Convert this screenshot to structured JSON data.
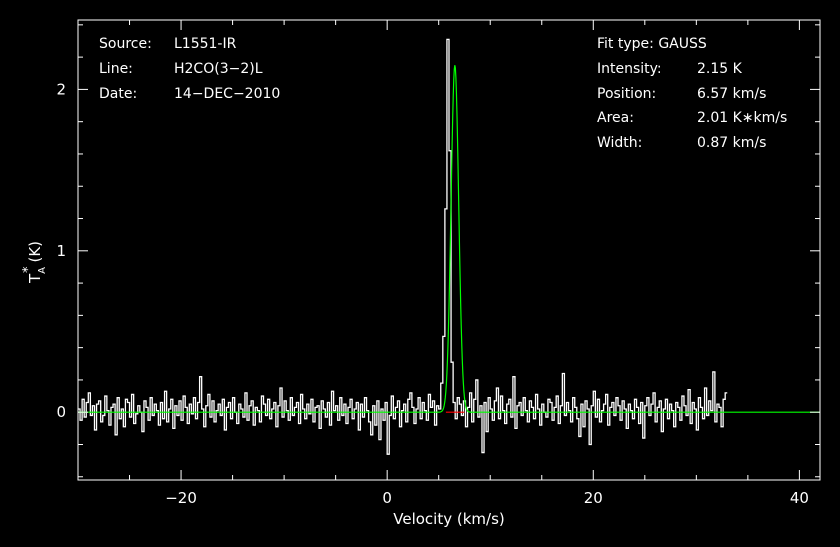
{
  "header_left": {
    "source_label": "Source:",
    "source_value": "L1551-IR",
    "line_label": "Line:",
    "line_value": "H2CO(3−2)L",
    "date_label": "Date:",
    "date_value": "14−DEC−2010"
  },
  "header_right": {
    "fit_type_label": "Fit type:",
    "fit_type_value": "GAUSS",
    "intensity_label": "Intensity:",
    "intensity_value": "2.15 K",
    "position_label": "Position:",
    "position_value": "6.57 km/s",
    "area_label": "Area:",
    "area_value": "2.01 K∗km/s",
    "width_label": "Width:",
    "width_value": "0.87 km/s"
  },
  "chart_data": {
    "type": "line",
    "xlabel": "Velocity (km/s)",
    "ylabel": "T",
    "ylabel_sup": "*",
    "ylabel_sub": "A",
    "ylabel_unit": "(K)",
    "xlim": [
      -30,
      42
    ],
    "ylim": [
      -0.42,
      2.43
    ],
    "x_ticks": [
      -20,
      0,
      20,
      40
    ],
    "x_tick_labels": [
      "−20",
      "0",
      "20",
      "40"
    ],
    "y_ticks": [
      0,
      1,
      2
    ],
    "y_tick_labels": [
      "0",
      "1",
      "2"
    ],
    "grid": false,
    "colors": {
      "background": "#000000",
      "data": "#ffffff",
      "fit": "#00ff00",
      "residual_peak": "#ff0000"
    },
    "series": [
      {
        "kind": "histogram",
        "color": "#ffffff",
        "x_start": -30.0,
        "x_step": 0.2,
        "values": [
          0.02,
          -0.05,
          0.08,
          -0.03,
          0.06,
          0.12,
          -0.02,
          0.04,
          -0.11,
          0.05,
          0.07,
          -0.06,
          -0.02,
          0.1,
          0.01,
          -0.08,
          0.03,
          0.05,
          -0.14,
          0.09,
          -0.04,
          0.02,
          -0.09,
          0.08,
          0.06,
          -0.03,
          0.11,
          -0.07,
          -0.01,
          0.04,
          0.0,
          -0.12,
          0.07,
          0.03,
          -0.05,
          0.09,
          -0.02,
          0.05,
          0.01,
          -0.08,
          0.06,
          -0.04,
          0.13,
          -0.06,
          0.02,
          0.08,
          -0.1,
          0.04,
          -0.02,
          0.07,
          -0.05,
          0.1,
          0.03,
          -0.07,
          0.05,
          -0.01,
          0.09,
          -0.04,
          0.06,
          0.22,
          0.02,
          -0.09,
          0.04,
          0.11,
          -0.03,
          0.07,
          -0.06,
          0.01,
          0.05,
          -0.02,
          0.08,
          -0.11,
          0.03,
          0.06,
          -0.04,
          0.09,
          0.0,
          -0.07,
          0.05,
          0.02,
          -0.03,
          0.12,
          -0.05,
          0.04,
          0.07,
          -0.08,
          0.03,
          0.01,
          -0.06,
          0.1,
          0.05,
          -0.02,
          0.08,
          -0.04,
          0.02,
          0.06,
          -0.09,
          0.04,
          0.15,
          -0.03,
          0.07,
          0.01,
          -0.05,
          0.09,
          -0.02,
          0.03,
          0.06,
          -0.07,
          0.11,
          0.02,
          -0.04,
          0.05,
          -0.01,
          0.08,
          -0.06,
          0.03,
          0.04,
          -0.1,
          0.07,
          0.02,
          -0.03,
          0.06,
          -0.08,
          0.13,
          0.01,
          0.04,
          -0.05,
          0.09,
          -0.02,
          0.05,
          -0.07,
          0.03,
          0.08,
          -0.04,
          0.02,
          0.06,
          -0.11,
          0.05,
          -0.03,
          0.09,
          0.01,
          -0.06,
          -0.14,
          0.04,
          -0.08,
          0.07,
          -0.17,
          0.02,
          -0.05,
          0.06,
          -0.26,
          -0.02,
          0.1,
          -0.04,
          0.03,
          0.07,
          -0.09,
          0.01,
          0.05,
          -0.06,
          0.08,
          0.12,
          0.03,
          -0.07,
          0.02,
          0.09,
          -0.04,
          0.06,
          0.01,
          -0.05,
          0.11,
          0.03,
          0.07,
          -0.08,
          0.04,
          0.02,
          0.18,
          0.47,
          1.26,
          2.31,
          1.62,
          0.31,
          0.06,
          -0.04,
          0.09,
          0.05,
          -0.02,
          0.07,
          -0.09,
          0.03,
          0.12,
          -0.06,
          0.08,
          0.2,
          -0.03,
          0.04,
          -0.25,
          0.06,
          -0.12,
          0.09,
          0.02,
          -0.05,
          0.07,
          0.15,
          -0.04,
          0.1,
          0.01,
          -0.07,
          0.05,
          0.08,
          -0.03,
          0.22,
          -0.1,
          0.04,
          0.06,
          -0.02,
          0.09,
          0.01,
          -0.06,
          0.07,
          0.03,
          -0.04,
          0.11,
          0.02,
          -0.08,
          0.05,
          0.0,
          -0.03,
          0.08,
          0.06,
          -0.05,
          0.03,
          0.1,
          -0.07,
          0.04,
          0.24,
          -0.02,
          0.06,
          0.01,
          -0.06,
          0.09,
          0.03,
          -0.04,
          -0.15,
          0.05,
          -0.09,
          0.07,
          0.02,
          -0.2,
          0.04,
          0.13,
          -0.03,
          0.08,
          -0.06,
          0.01,
          0.05,
          0.11,
          -0.08,
          0.03,
          0.06,
          -0.02,
          0.09,
          0.04,
          -0.05,
          0.07,
          0.02,
          -0.1,
          0.05,
          0.01,
          -0.04,
          0.08,
          0.03,
          -0.07,
          0.06,
          -0.16,
          0.04,
          0.09,
          -0.02,
          0.05,
          0.12,
          -0.06,
          0.03,
          0.07,
          -0.12,
          0.02,
          0.08,
          -0.04,
          0.05,
          0.01,
          -0.09,
          0.06,
          0.03,
          -0.05,
          0.1,
          0.04,
          -0.02,
          0.14,
          -0.07,
          0.06,
          0.02,
          -0.11,
          0.09,
          0.03,
          -0.04,
          0.15,
          -0.02,
          0.07,
          0.01,
          0.25,
          -0.06,
          0.05,
          0.03,
          -0.09,
          0.08,
          0.12
        ]
      },
      {
        "kind": "gaussian_fit",
        "color": "#00ff00",
        "amplitude": 2.15,
        "center": 6.57,
        "fwhm": 0.87
      },
      {
        "kind": "baseline_segment",
        "color": "#ff0000",
        "x_range": [
          5.7,
          7.5
        ],
        "y": 0
      }
    ]
  }
}
